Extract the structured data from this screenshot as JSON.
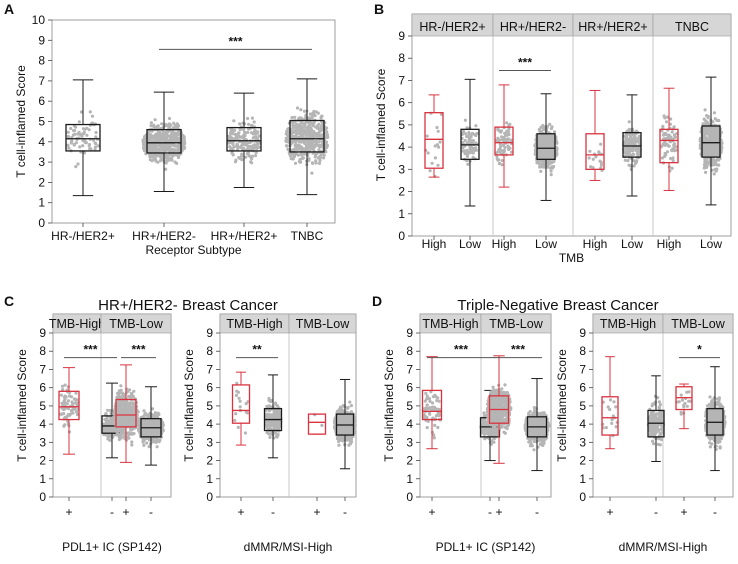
{
  "colors": {
    "black": "#1a1a1a",
    "red": "#d9333f",
    "dots": "#b5b5b5",
    "strip_bg": "#d6d6d6",
    "axis": "#444444"
  },
  "panel_letters": {
    "a": "A",
    "b": "B",
    "c": "C",
    "d": "D"
  },
  "section_titles": {
    "c": "HR+/HER2- Breast Cancer",
    "d": "Triple-Negative Breast Cancer"
  },
  "chart_data": [
    {
      "id": "A",
      "type": "box",
      "ylabel": "T cell-inflamed Score",
      "xlabel": "Receptor Subtype",
      "ylim": [
        0,
        10
      ],
      "yticks": [
        0,
        1,
        2,
        3,
        4,
        5,
        6,
        7,
        8,
        9,
        10
      ],
      "boxes": [
        {
          "label": "HR-/HER2+",
          "color": "black",
          "min": 1.35,
          "q1": 3.55,
          "median": 4.15,
          "q3": 4.85,
          "max": 7.05,
          "density": "low"
        },
        {
          "label": "HR+/HER2-",
          "color": "black",
          "min": 1.55,
          "q1": 3.45,
          "median": 3.95,
          "q3": 4.6,
          "max": 6.45,
          "density": "high"
        },
        {
          "label": "HR+/HER2+",
          "color": "black",
          "min": 1.75,
          "q1": 3.55,
          "median": 4.05,
          "q3": 4.7,
          "max": 6.4,
          "density": "med"
        },
        {
          "label": "TNBC",
          "color": "black",
          "min": 1.4,
          "q1": 3.5,
          "median": 4.15,
          "q3": 5.05,
          "max": 7.1,
          "density": "high"
        }
      ],
      "comparisons": [
        {
          "from": 1,
          "to": 3,
          "label": "***",
          "y": 8.55
        }
      ]
    },
    {
      "id": "B",
      "type": "box",
      "ylabel": "T cell-inflamed Score",
      "xlabel": "TMB",
      "ylim": [
        0,
        9
      ],
      "yticks": [
        0,
        1,
        2,
        3,
        4,
        5,
        6,
        7,
        8,
        9
      ],
      "facets": [
        "HR-/HER2+",
        "HR+/HER2-",
        "HR+/HER2+",
        "TNBC"
      ],
      "boxes": [
        {
          "label": "High",
          "facet": 0,
          "color": "red",
          "min": 2.65,
          "q1": 3.05,
          "median": 4.35,
          "q3": 5.55,
          "max": 6.35,
          "density": "few"
        },
        {
          "label": "Low",
          "facet": 0,
          "color": "black",
          "min": 1.35,
          "q1": 3.45,
          "median": 4.1,
          "q3": 4.8,
          "max": 7.05,
          "density": "low"
        },
        {
          "label": "High",
          "facet": 1,
          "color": "red",
          "min": 2.2,
          "q1": 3.65,
          "median": 4.2,
          "q3": 4.9,
          "max": 6.8,
          "density": "low"
        },
        {
          "label": "Low",
          "facet": 1,
          "color": "black",
          "min": 1.6,
          "q1": 3.45,
          "median": 3.95,
          "q3": 4.6,
          "max": 6.4,
          "density": "high"
        },
        {
          "label": "High",
          "facet": 2,
          "color": "red",
          "min": 2.5,
          "q1": 3.0,
          "median": 3.65,
          "q3": 4.6,
          "max": 6.55,
          "density": "few"
        },
        {
          "label": "Low",
          "facet": 2,
          "color": "black",
          "min": 1.8,
          "q1": 3.55,
          "median": 4.05,
          "q3": 4.65,
          "max": 6.35,
          "density": "med"
        },
        {
          "label": "High",
          "facet": 3,
          "color": "red",
          "min": 2.05,
          "q1": 3.3,
          "median": 4.3,
          "q3": 4.8,
          "max": 6.65,
          "density": "low"
        },
        {
          "label": "Low",
          "facet": 3,
          "color": "black",
          "min": 1.4,
          "q1": 3.55,
          "median": 4.2,
          "q3": 4.95,
          "max": 7.15,
          "density": "high"
        }
      ],
      "comparisons": [
        {
          "from": 2,
          "to": 3,
          "label": "***",
          "y": 7.45
        }
      ]
    },
    {
      "id": "C1",
      "type": "box",
      "ylabel": "T cell-inflamed Score",
      "xlabel": "PDL1+ IC (SP142)",
      "ylim": [
        0,
        9
      ],
      "yticks": [
        0,
        1,
        2,
        3,
        4,
        5,
        6,
        7,
        8,
        9
      ],
      "facets": [
        "TMB-High",
        "TMB-Low"
      ],
      "boxes": [
        {
          "label": "+",
          "facet": 0,
          "color": "red",
          "min": 2.35,
          "q1": 4.25,
          "median": 4.95,
          "q3": 5.8,
          "max": 7.1,
          "density": "low"
        },
        {
          "label": "-",
          "facet": 0,
          "color": "black",
          "min": 2.15,
          "q1": 3.5,
          "median": 3.9,
          "q3": 4.45,
          "max": 6.25,
          "density": "med"
        },
        {
          "label": "+",
          "facet": 1,
          "color": "red",
          "min": 1.9,
          "q1": 3.85,
          "median": 4.5,
          "q3": 5.35,
          "max": 7.25,
          "density": "high"
        },
        {
          "label": "-",
          "facet": 1,
          "color": "black",
          "min": 1.75,
          "q1": 3.3,
          "median": 3.8,
          "q3": 4.3,
          "max": 6.05,
          "density": "high"
        }
      ],
      "comparisons": [
        {
          "from": 0,
          "to": 1,
          "label": "***",
          "y": 7.65
        },
        {
          "from": 2,
          "to": 3,
          "label": "***",
          "y": 7.65
        }
      ]
    },
    {
      "id": "C2",
      "type": "box",
      "ylabel": "T cell-inflamed Score",
      "xlabel": "dMMR/MSI-High",
      "ylim": [
        0,
        9
      ],
      "yticks": [
        0,
        1,
        2,
        3,
        4,
        5,
        6,
        7,
        8,
        9
      ],
      "facets": [
        "TMB-High",
        "TMB-Low"
      ],
      "boxes": [
        {
          "label": "+",
          "facet": 0,
          "color": "red",
          "min": 2.85,
          "q1": 4.05,
          "median": 4.75,
          "q3": 6.15,
          "max": 6.85,
          "density": "few"
        },
        {
          "label": "-",
          "facet": 0,
          "color": "black",
          "min": 2.15,
          "q1": 3.65,
          "median": 4.25,
          "q3": 4.85,
          "max": 6.7,
          "density": "med"
        },
        {
          "label": "+",
          "facet": 1,
          "color": "red",
          "min": 3.45,
          "q1": 3.45,
          "median": 4.1,
          "q3": 4.55,
          "max": 4.55,
          "density": "tiny"
        },
        {
          "label": "-",
          "facet": 1,
          "color": "black",
          "min": 1.55,
          "q1": 3.4,
          "median": 3.95,
          "q3": 4.55,
          "max": 6.45,
          "density": "high"
        }
      ],
      "comparisons": [
        {
          "from": 0,
          "to": 1,
          "label": "**",
          "y": 7.65
        }
      ]
    },
    {
      "id": "D1",
      "type": "box",
      "ylabel": "T cell-inflamed Score",
      "xlabel": "PDL1+ IC (SP142)",
      "ylim": [
        0,
        9
      ],
      "yticks": [
        0,
        1,
        2,
        3,
        4,
        5,
        6,
        7,
        8,
        9
      ],
      "facets": [
        "TMB-High",
        "TMB-Low"
      ],
      "boxes": [
        {
          "label": "+",
          "facet": 0,
          "color": "red",
          "min": 2.65,
          "q1": 4.25,
          "median": 4.7,
          "q3": 5.85,
          "max": 7.7,
          "density": "low"
        },
        {
          "label": "-",
          "facet": 0,
          "color": "black",
          "min": 2.0,
          "q1": 3.3,
          "median": 3.85,
          "q3": 4.35,
          "max": 5.85,
          "density": "med"
        },
        {
          "label": "+",
          "facet": 1,
          "color": "red",
          "min": 1.85,
          "q1": 4.05,
          "median": 4.8,
          "q3": 5.55,
          "max": 7.75,
          "density": "high"
        },
        {
          "label": "-",
          "facet": 1,
          "color": "black",
          "min": 1.45,
          "q1": 3.3,
          "median": 3.85,
          "q3": 4.4,
          "max": 6.5,
          "density": "high"
        }
      ],
      "comparisons": [
        {
          "from": 0,
          "to": 1,
          "label": "***",
          "y": 7.65
        },
        {
          "from": 2,
          "to": 3,
          "label": "***",
          "y": 7.65
        }
      ]
    },
    {
      "id": "D2",
      "type": "box",
      "ylabel": "T cell-inflamed Score",
      "xlabel": "dMMR/MSI-High",
      "ylim": [
        0,
        9
      ],
      "yticks": [
        0,
        1,
        2,
        3,
        4,
        5,
        6,
        7,
        8,
        9
      ],
      "facets": [
        "TMB-High",
        "TMB-Low"
      ],
      "boxes": [
        {
          "label": "+",
          "facet": 0,
          "color": "red",
          "min": 2.65,
          "q1": 3.4,
          "median": 4.35,
          "q3": 5.5,
          "max": 7.7,
          "density": "few"
        },
        {
          "label": "-",
          "facet": 0,
          "color": "black",
          "min": 1.95,
          "q1": 3.3,
          "median": 4.05,
          "q3": 4.75,
          "max": 6.65,
          "density": "med"
        },
        {
          "label": "+",
          "facet": 1,
          "color": "red",
          "min": 3.75,
          "q1": 4.8,
          "median": 5.45,
          "q3": 6.05,
          "max": 6.2,
          "density": "few"
        },
        {
          "label": "-",
          "facet": 1,
          "color": "black",
          "min": 1.45,
          "q1": 3.4,
          "median": 4.1,
          "q3": 4.85,
          "max": 7.15,
          "density": "high"
        }
      ],
      "comparisons": [
        {
          "from": 2,
          "to": 3,
          "label": "*",
          "y": 7.65
        }
      ]
    }
  ]
}
